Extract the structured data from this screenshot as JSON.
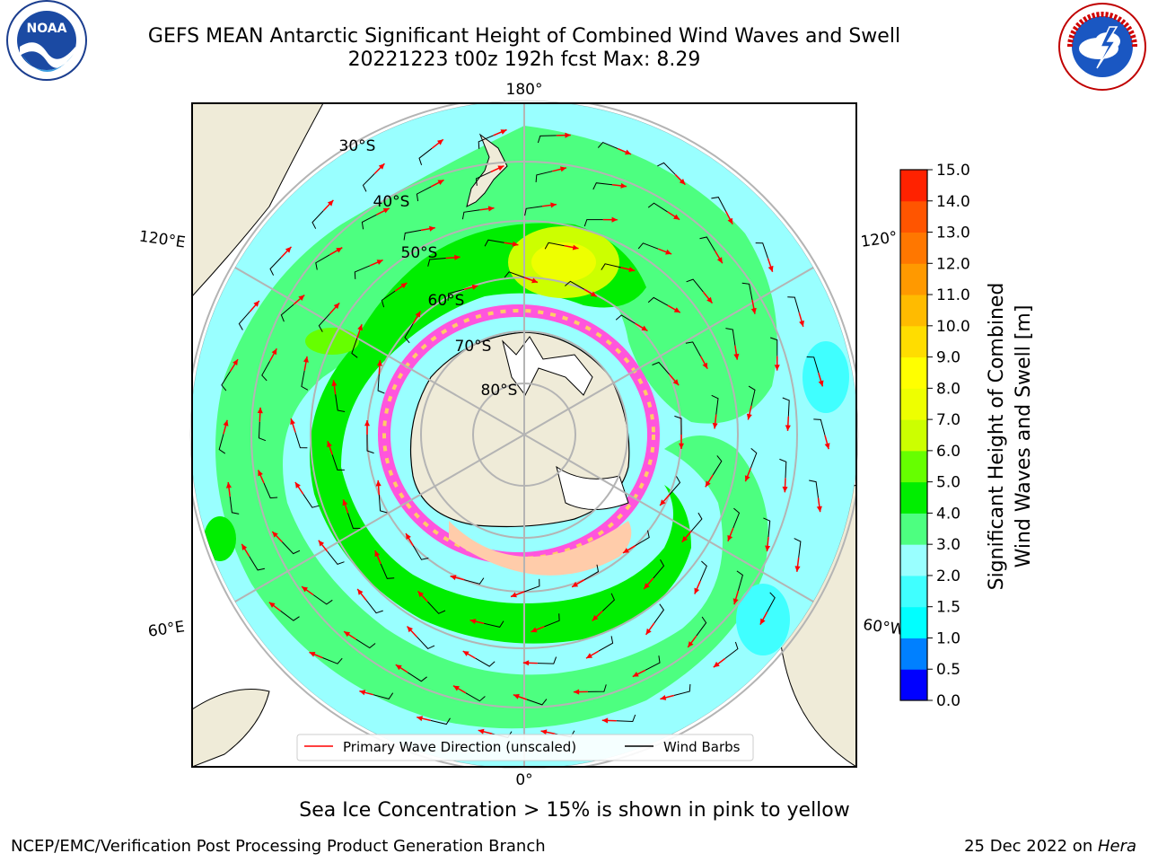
{
  "header": {
    "title_line1": "GEFS MEAN Antarctic Significant Height of Combined Wind Waves and Swell",
    "title_line2": "20221223 t00z 192h fcst   Max: 8.29"
  },
  "logos": {
    "left": {
      "icon": "noaa-logo-icon",
      "text": "NOAA",
      "ring_text": "NATIONAL OCEANIC AND ATMOSPHERIC ADMINISTRATION · U.S. DEPARTMENT OF COMMERCE"
    },
    "right": {
      "icon": "nws-logo-icon",
      "ring_text": "NATIONAL WEATHER SERVICE"
    }
  },
  "map": {
    "projection": "south-polar-stereographic",
    "longitude_labels": {
      "top": "180°",
      "bottom": "0°",
      "upper_left": "120°E",
      "lower_left": "60°E",
      "upper_right": "120°",
      "lower_right": "60°W"
    },
    "latitude_labels": [
      "30°S",
      "40°S",
      "50°S",
      "60°S",
      "70°S",
      "80°S"
    ],
    "legend": {
      "wave_direction": "Primary Wave Direction (unscaled)",
      "wind_barbs": "Wind Barbs"
    },
    "colors": {
      "land": "#efebd8",
      "arrow": "#ff0000",
      "barb": "#000000",
      "grid": "#b4b4b4"
    }
  },
  "colorbar": {
    "label_line1": "Significant Height of Combined",
    "label_line2": "Wind Waves and Swell [m]",
    "ticks": [
      "0.0",
      "0.5",
      "1.0",
      "1.5",
      "2.0",
      "3.0",
      "4.0",
      "5.0",
      "6.0",
      "7.0",
      "8.0",
      "9.0",
      "10.0",
      "11.0",
      "12.0",
      "13.0",
      "14.0",
      "15.0"
    ],
    "colors": [
      "#0000ff",
      "#0080ff",
      "#00ffff",
      "#40ffff",
      "#99ffff",
      "#4dff80",
      "#00ee00",
      "#66ff00",
      "#ccff00",
      "#eeff00",
      "#ffff00",
      "#ffdd00",
      "#ffbb00",
      "#ff9900",
      "#ff7700",
      "#ff5500",
      "#ff2200"
    ]
  },
  "footer": {
    "sea_ice_note": "Sea Ice Concentration > 15% is shown in pink to yellow",
    "left": "NCEP/EMC/Verification Post Processing Product Generation Branch",
    "date": "25 Dec 2022 on ",
    "machine": "Hera"
  }
}
